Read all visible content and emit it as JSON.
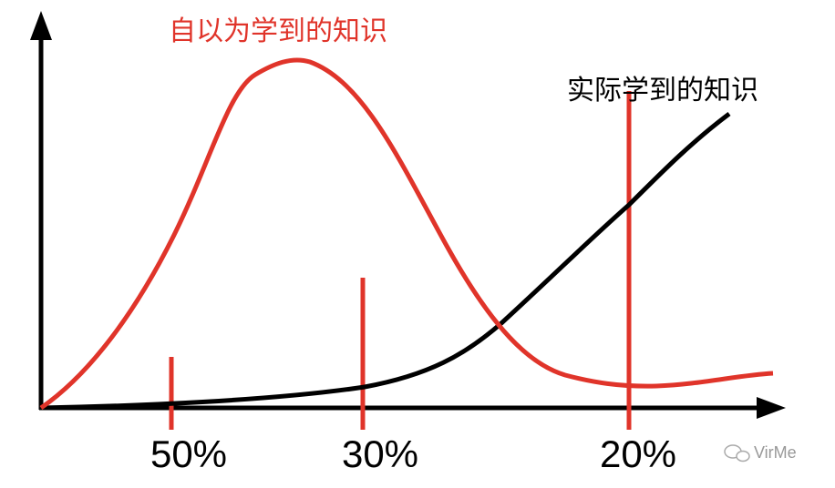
{
  "labels": {
    "perceived": "自以为学到的知识",
    "actual": "实际学到的知识"
  },
  "markers": [
    "50%",
    "30%",
    "20%"
  ],
  "watermark": "VirMe"
}
